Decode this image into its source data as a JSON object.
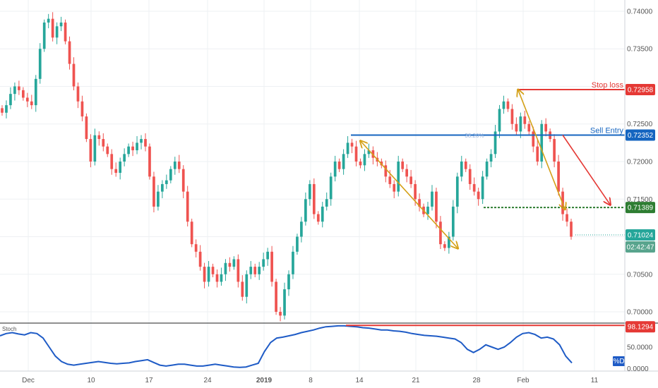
{
  "chart_data": {
    "type": "candlestick",
    "main": {
      "y_ticks": [
        0.74,
        0.735,
        0.73,
        0.725,
        0.72,
        0.715,
        0.71,
        0.705,
        0.7
      ],
      "y_tick_labels": [
        "0.74000",
        "0.73500",
        "0.73000",
        "0.72500",
        "0.72000",
        "0.71500",
        "0.71000",
        "0.70500",
        "0.70000"
      ],
      "ylim": [
        0.6985,
        0.7415
      ],
      "x_labels": [
        "Dec",
        "10",
        "17",
        "24",
        "2019",
        "8",
        "14",
        "21",
        "28",
        "Feb",
        "11"
      ],
      "closes": [
        0.7265,
        0.7275,
        0.729,
        0.73,
        0.7295,
        0.7285,
        0.728,
        0.7275,
        0.731,
        0.735,
        0.7385,
        0.739,
        0.7365,
        0.738,
        0.7385,
        0.736,
        0.733,
        0.73,
        0.728,
        0.726,
        0.723,
        0.72,
        0.7235,
        0.723,
        0.722,
        0.721,
        0.719,
        0.7185,
        0.72,
        0.721,
        0.722,
        0.7215,
        0.7225,
        0.723,
        0.722,
        0.718,
        0.714,
        0.716,
        0.717,
        0.7175,
        0.719,
        0.72,
        0.719,
        0.716,
        0.712,
        0.709,
        0.708,
        0.706,
        0.704,
        0.706,
        0.705,
        0.704,
        0.705,
        0.7065,
        0.706,
        0.707,
        0.704,
        0.702,
        0.705,
        0.706,
        0.705,
        0.706,
        0.707,
        0.708,
        0.704,
        0.7,
        0.6995,
        0.703,
        0.705,
        0.708,
        0.71,
        0.712,
        0.715,
        0.717,
        0.713,
        0.712,
        0.714,
        0.715,
        0.718,
        0.72,
        0.719,
        0.721,
        0.7225,
        0.722,
        0.72,
        0.7195,
        0.721,
        0.7215,
        0.7205,
        0.72,
        0.7195,
        0.718,
        0.717,
        0.716,
        0.72,
        0.719,
        0.718,
        0.717,
        0.715,
        0.714,
        0.713,
        0.714,
        0.716,
        0.712,
        0.709,
        0.7085,
        0.71,
        0.714,
        0.718,
        0.72,
        0.719,
        0.717,
        0.716,
        0.715,
        0.718,
        0.72,
        0.721,
        0.724,
        0.727,
        0.728,
        0.727,
        0.725,
        0.724,
        0.726,
        0.725,
        0.724,
        0.722,
        0.72,
        0.725,
        0.724,
        0.723,
        0.72,
        0.716,
        0.713,
        0.712,
        0.71
      ],
      "last_price": 0.71024,
      "countdown": "02:42:47",
      "annotations": [
        {
          "label": "Stop loss",
          "value": 0.72958,
          "value_label": "0.72958",
          "color": "#e53935",
          "style": "solid"
        },
        {
          "label": "Sell Entry",
          "value": 0.72352,
          "value_label": "0.72352",
          "color": "#1565c0",
          "style": "solid"
        },
        {
          "label": "",
          "value": 0.71389,
          "value_label": "0.71389",
          "color": "#2e7d32",
          "style": "dotted"
        }
      ],
      "fib_label": "38.20%",
      "up_color": "#26a69a",
      "down_color": "#ef5350",
      "pattern_color": "#d4a017",
      "target_arrow_color": "#e53935"
    },
    "oscillator": {
      "name": "Stoch",
      "series_label": "%D",
      "level_label": "98.1294",
      "level_value": 98.1294,
      "y_tick_labels": [
        "50.0000",
        "0.0000"
      ],
      "ylim": [
        0,
        100
      ],
      "line_color": "#1e5bc6",
      "values": [
        75,
        80,
        82,
        79,
        77,
        82,
        80,
        70,
        50,
        30,
        18,
        12,
        10,
        12,
        14,
        16,
        18,
        16,
        14,
        13,
        14,
        15,
        18,
        20,
        22,
        16,
        10,
        8,
        10,
        12,
        12,
        10,
        8,
        8,
        10,
        12,
        10,
        8,
        6,
        5,
        6,
        10,
        14,
        40,
        60,
        70,
        72,
        75,
        78,
        82,
        85,
        88,
        92,
        95,
        96,
        97,
        97,
        96,
        95,
        93,
        92,
        90,
        88,
        88,
        86,
        85,
        83,
        80,
        78,
        76,
        75,
        74,
        72,
        70,
        68,
        60,
        45,
        38,
        45,
        55,
        50,
        45,
        50,
        60,
        72,
        80,
        82,
        78,
        70,
        72,
        68,
        55,
        30,
        15
      ]
    }
  }
}
